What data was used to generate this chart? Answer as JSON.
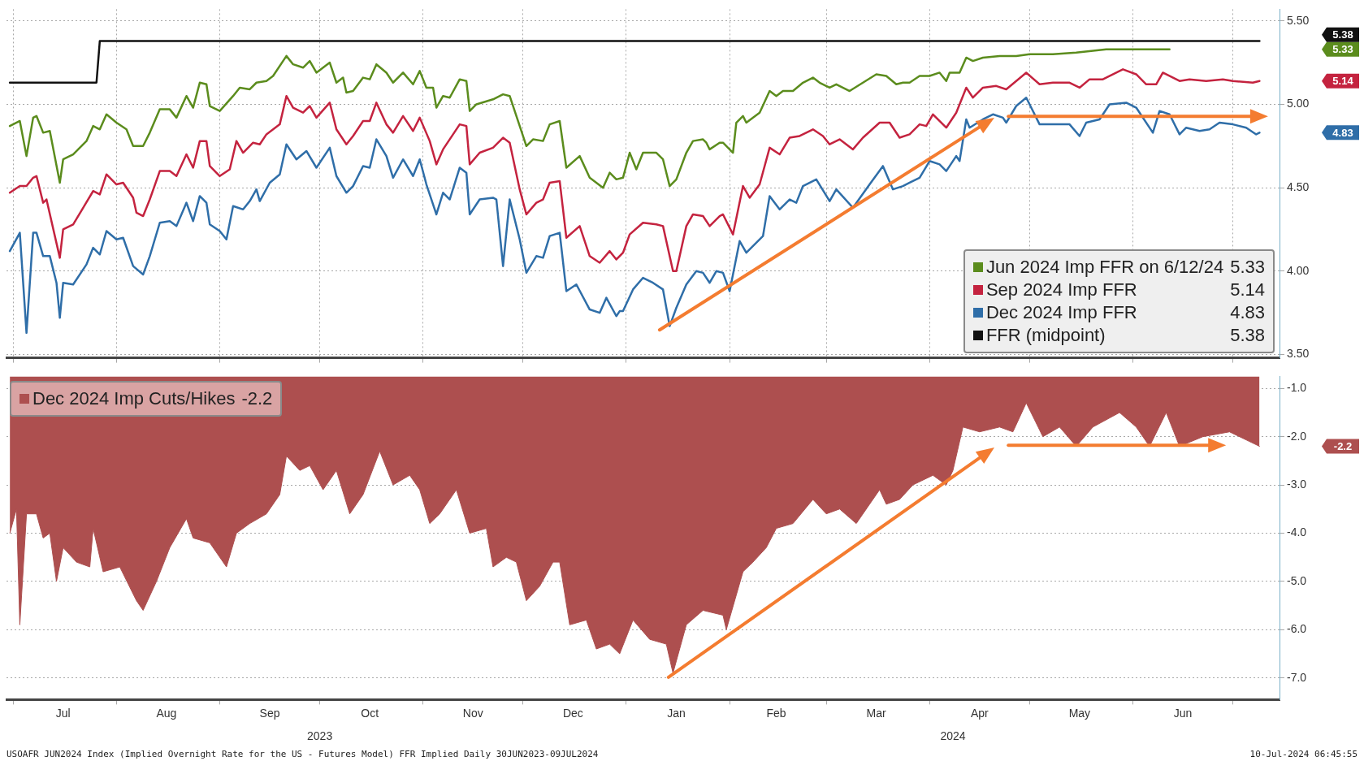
{
  "chart_data": [
    {
      "type": "line",
      "series": [
        {
          "name": "Jun 2024 Imp FFR on 6/12/24",
          "color": "#5b8c1d",
          "x": [
            "2023-06-30",
            "2023-07-03",
            "2023-07-05",
            "2023-07-07",
            "2023-07-08",
            "2023-07-10",
            "2023-07-12",
            "2023-07-15",
            "2023-07-16",
            "2023-07-19",
            "2023-07-23",
            "2023-07-25",
            "2023-07-27",
            "2023-07-29",
            "2023-08-01",
            "2023-08-04",
            "2023-08-06",
            "2023-08-09",
            "2023-08-11",
            "2023-08-14",
            "2023-08-17",
            "2023-08-19",
            "2023-08-22",
            "2023-08-24",
            "2023-08-26",
            "2023-08-28",
            "2023-08-29",
            "2023-09-01",
            "2023-09-05",
            "2023-09-07",
            "2023-09-10",
            "2023-09-12",
            "2023-09-15",
            "2023-09-17",
            "2023-09-21",
            "2023-09-23",
            "2023-09-26",
            "2023-09-28",
            "2023-09-30",
            "2023-10-04",
            "2023-10-06",
            "2023-10-08",
            "2023-10-09",
            "2023-10-11",
            "2023-10-14",
            "2023-10-16",
            "2023-10-18",
            "2023-10-21",
            "2023-10-23",
            "2023-10-26",
            "2023-10-29",
            "2023-10-31",
            "2023-11-02",
            "2023-11-04",
            "2023-11-05",
            "2023-11-07",
            "2023-11-09",
            "2023-11-12",
            "2023-11-14",
            "2023-11-15",
            "2023-11-17",
            "2023-11-22",
            "2023-11-25",
            "2023-11-27",
            "2023-11-30",
            "2023-12-02",
            "2023-12-04",
            "2023-12-07",
            "2023-12-09",
            "2023-12-12",
            "2023-12-14",
            "2023-12-18",
            "2023-12-21",
            "2023-12-25",
            "2023-12-27",
            "2023-12-29",
            "2023-12-31",
            "2024-01-02",
            "2024-01-04",
            "2024-01-06",
            "2024-01-10",
            "2024-01-12",
            "2024-01-14",
            "2024-01-16",
            "2024-01-19",
            "2024-01-21",
            "2024-01-24",
            "2024-01-25",
            "2024-01-26",
            "2024-01-29",
            "2024-01-30",
            "2024-02-02",
            "2024-02-03",
            "2024-02-05",
            "2024-02-06",
            "2024-02-10",
            "2024-02-13",
            "2024-02-15",
            "2024-02-17",
            "2024-02-20",
            "2024-02-23",
            "2024-02-26",
            "2024-02-28",
            "2024-03-02",
            "2024-03-04",
            "2024-03-08",
            "2024-03-12",
            "2024-03-16",
            "2024-03-19",
            "2024-03-22",
            "2024-03-24",
            "2024-03-26",
            "2024-03-29",
            "2024-04-01",
            "2024-04-04",
            "2024-04-06",
            "2024-04-07",
            "2024-04-10",
            "2024-04-12",
            "2024-04-14",
            "2024-04-17",
            "2024-04-22",
            "2024-04-27",
            "2024-05-01",
            "2024-05-08",
            "2024-05-15",
            "2024-05-24",
            "2024-06-02",
            "2024-06-12"
          ],
          "values": [
            4.87,
            4.9,
            4.69,
            4.92,
            4.93,
            4.83,
            4.84,
            4.53,
            4.67,
            4.7,
            4.78,
            4.87,
            4.85,
            4.94,
            4.89,
            4.85,
            4.75,
            4.75,
            4.83,
            4.97,
            4.97,
            4.92,
            5.05,
            4.98,
            5.13,
            5.12,
            4.99,
            4.96,
            5.05,
            5.1,
            5.09,
            5.13,
            5.14,
            5.17,
            5.29,
            5.24,
            5.22,
            5.26,
            5.19,
            5.25,
            5.13,
            5.16,
            5.07,
            5.08,
            5.16,
            5.15,
            5.24,
            5.19,
            5.13,
            5.19,
            5.12,
            5.2,
            5.1,
            5.1,
            4.98,
            5.05,
            5.04,
            5.15,
            5.14,
            4.96,
            5.0,
            5.03,
            5.06,
            5.05,
            4.87,
            4.75,
            4.79,
            4.78,
            4.88,
            4.9,
            4.62,
            4.69,
            4.56,
            4.5,
            4.59,
            4.55,
            4.56,
            4.71,
            4.61,
            4.71,
            4.71,
            4.67,
            4.51,
            4.55,
            4.71,
            4.78,
            4.79,
            4.77,
            4.73,
            4.77,
            4.77,
            4.71,
            4.89,
            4.93,
            4.89,
            4.95,
            5.08,
            5.05,
            5.08,
            5.08,
            5.13,
            5.16,
            5.13,
            5.1,
            5.12,
            5.08,
            5.13,
            5.18,
            5.17,
            5.12,
            5.13,
            5.13,
            5.17,
            5.17,
            5.19,
            5.14,
            5.19,
            5.19,
            5.28,
            5.26,
            5.28,
            5.29,
            5.29,
            5.3,
            5.3,
            5.31,
            5.33,
            5.33,
            5.33
          ]
        },
        {
          "name": "Sep 2024 Imp FFR",
          "color": "#c4233f",
          "x": [
            "2023-06-30",
            "2023-07-03",
            "2023-07-05",
            "2023-07-07",
            "2023-07-08",
            "2023-07-10",
            "2023-07-11",
            "2023-07-15",
            "2023-07-16",
            "2023-07-19",
            "2023-07-22",
            "2023-07-25",
            "2023-07-27",
            "2023-07-29",
            "2023-08-01",
            "2023-08-03",
            "2023-08-06",
            "2023-08-07",
            "2023-08-09",
            "2023-08-11",
            "2023-08-14",
            "2023-08-17",
            "2023-08-19",
            "2023-08-22",
            "2023-08-24",
            "2023-08-26",
            "2023-08-28",
            "2023-08-29",
            "2023-09-01",
            "2023-09-04",
            "2023-09-06",
            "2023-09-08",
            "2023-09-11",
            "2023-09-13",
            "2023-09-15",
            "2023-09-19",
            "2023-09-21",
            "2023-09-23",
            "2023-09-26",
            "2023-09-28",
            "2023-09-30",
            "2023-10-04",
            "2023-10-06",
            "2023-10-09",
            "2023-10-11",
            "2023-10-14",
            "2023-10-16",
            "2023-10-18",
            "2023-10-21",
            "2023-10-23",
            "2023-10-26",
            "2023-10-29",
            "2023-10-31",
            "2023-11-03",
            "2023-11-05",
            "2023-11-07",
            "2023-11-12",
            "2023-11-14",
            "2023-11-15",
            "2023-11-18",
            "2023-11-22",
            "2023-11-25",
            "2023-11-27",
            "2023-11-30",
            "2023-12-02",
            "2023-12-05",
            "2023-12-07",
            "2023-12-09",
            "2023-12-12",
            "2023-12-14",
            "2023-12-18",
            "2023-12-21",
            "2023-12-24",
            "2023-12-27",
            "2023-12-29",
            "2023-12-31",
            "2024-01-02",
            "2024-01-06",
            "2024-01-10",
            "2024-01-12",
            "2024-01-15",
            "2024-01-16",
            "2024-01-19",
            "2024-01-21",
            "2024-01-24",
            "2024-01-26",
            "2024-01-29",
            "2024-01-30",
            "2024-02-02",
            "2024-02-05",
            "2024-02-07",
            "2024-02-10",
            "2024-02-13",
            "2024-02-16",
            "2024-02-19",
            "2024-02-22",
            "2024-02-26",
            "2024-02-29",
            "2024-03-02",
            "2024-03-05",
            "2024-03-09",
            "2024-03-12",
            "2024-03-17",
            "2024-03-20",
            "2024-03-23",
            "2024-03-26",
            "2024-03-29",
            "2024-03-31",
            "2024-04-02",
            "2024-04-06",
            "2024-04-09",
            "2024-04-12",
            "2024-04-14",
            "2024-04-17",
            "2024-04-21",
            "2024-04-24",
            "2024-04-27",
            "2024-04-30",
            "2024-05-04",
            "2024-05-08",
            "2024-05-13",
            "2024-05-16",
            "2024-05-19",
            "2024-05-23",
            "2024-05-29",
            "2024-06-02",
            "2024-06-05",
            "2024-06-08",
            "2024-06-10",
            "2024-06-15",
            "2024-06-18",
            "2024-06-23",
            "2024-06-28",
            "2024-07-01",
            "2024-07-07",
            "2024-07-09"
          ],
          "values": [
            4.47,
            4.51,
            4.51,
            4.56,
            4.57,
            4.41,
            4.43,
            4.08,
            4.25,
            4.28,
            4.38,
            4.48,
            4.46,
            4.58,
            4.52,
            4.53,
            4.44,
            4.35,
            4.33,
            4.43,
            4.6,
            4.6,
            4.57,
            4.7,
            4.62,
            4.78,
            4.78,
            4.63,
            4.57,
            4.61,
            4.78,
            4.71,
            4.77,
            4.76,
            4.82,
            4.88,
            5.05,
            4.98,
            4.95,
            4.99,
            4.92,
            5.01,
            4.85,
            4.76,
            4.81,
            4.9,
            4.9,
            5.01,
            4.88,
            4.83,
            4.93,
            4.84,
            4.92,
            4.78,
            4.64,
            4.73,
            4.88,
            4.87,
            4.64,
            4.71,
            4.74,
            4.8,
            4.77,
            4.49,
            4.34,
            4.41,
            4.43,
            4.53,
            4.54,
            4.2,
            4.27,
            4.09,
            4.05,
            4.12,
            4.07,
            4.11,
            4.22,
            4.29,
            4.28,
            4.27,
            4.0,
            4.0,
            4.27,
            4.34,
            4.33,
            4.27,
            4.33,
            4.34,
            4.22,
            4.51,
            4.44,
            4.52,
            4.74,
            4.7,
            4.8,
            4.81,
            4.85,
            4.81,
            4.76,
            4.79,
            4.73,
            4.8,
            4.89,
            4.89,
            4.8,
            4.82,
            4.88,
            4.87,
            4.94,
            4.86,
            4.95,
            5.1,
            5.04,
            5.1,
            5.11,
            5.09,
            5.14,
            5.19,
            5.12,
            5.13,
            5.13,
            5.1,
            5.15,
            5.15,
            5.21,
            5.18,
            5.12,
            5.12,
            5.19,
            5.14,
            5.15,
            5.14,
            5.15,
            5.14,
            5.13,
            5.14
          ]
        },
        {
          "name": "Dec 2024 Imp FFR",
          "color": "#2f6ea8",
          "x": [
            "2023-06-30",
            "2023-07-03",
            "2023-07-05",
            "2023-07-07",
            "2023-07-08",
            "2023-07-10",
            "2023-07-12",
            "2023-07-14",
            "2023-07-15",
            "2023-07-16",
            "2023-07-19",
            "2023-07-23",
            "2023-07-25",
            "2023-07-27",
            "2023-07-29",
            "2023-08-01",
            "2023-08-03",
            "2023-08-06",
            "2023-08-09",
            "2023-08-11",
            "2023-08-14",
            "2023-08-17",
            "2023-08-19",
            "2023-08-22",
            "2023-08-24",
            "2023-08-26",
            "2023-08-28",
            "2023-08-29",
            "2023-09-01",
            "2023-09-03",
            "2023-09-05",
            "2023-09-08",
            "2023-09-10",
            "2023-09-12",
            "2023-09-13",
            "2023-09-16",
            "2023-09-19",
            "2023-09-21",
            "2023-09-24",
            "2023-09-27",
            "2023-09-30",
            "2023-10-04",
            "2023-10-06",
            "2023-10-09",
            "2023-10-11",
            "2023-10-14",
            "2023-10-16",
            "2023-10-18",
            "2023-10-21",
            "2023-10-23",
            "2023-10-26",
            "2023-10-29",
            "2023-10-31",
            "2023-11-02",
            "2023-11-05",
            "2023-11-07",
            "2023-11-09",
            "2023-11-12",
            "2023-11-14",
            "2023-11-15",
            "2023-11-18",
            "2023-11-22",
            "2023-11-23",
            "2023-11-25",
            "2023-11-27",
            "2023-11-30",
            "2023-12-02",
            "2023-12-05",
            "2023-12-07",
            "2023-12-09",
            "2023-12-12",
            "2023-12-14",
            "2023-12-17",
            "2023-12-21",
            "2023-12-24",
            "2023-12-26",
            "2023-12-29",
            "2023-12-30",
            "2023-12-31",
            "2024-01-03",
            "2024-01-06",
            "2024-01-09",
            "2024-01-12",
            "2024-01-14",
            "2024-01-16",
            "2024-01-19",
            "2024-01-22",
            "2024-01-24",
            "2024-01-26",
            "2024-01-28",
            "2024-01-30",
            "2024-02-01",
            "2024-02-04",
            "2024-02-06",
            "2024-02-11",
            "2024-02-13",
            "2024-02-16",
            "2024-02-19",
            "2024-02-21",
            "2024-02-23",
            "2024-02-27",
            "2024-03-02",
            "2024-03-04",
            "2024-03-09",
            "2024-03-14",
            "2024-03-18",
            "2024-03-21",
            "2024-03-24",
            "2024-03-26",
            "2024-03-29",
            "2024-04-01",
            "2024-04-04",
            "2024-04-06",
            "2024-04-09",
            "2024-04-10",
            "2024-04-12",
            "2024-04-13",
            "2024-04-17",
            "2024-04-20",
            "2024-04-23",
            "2024-04-24",
            "2024-04-27",
            "2024-04-30",
            "2024-05-04",
            "2024-05-08",
            "2024-05-13",
            "2024-05-16",
            "2024-05-18",
            "2024-05-22",
            "2024-05-25",
            "2024-05-30",
            "2024-06-02",
            "2024-06-07",
            "2024-06-09",
            "2024-06-12",
            "2024-06-15",
            "2024-06-17",
            "2024-06-21",
            "2024-06-24",
            "2024-06-27",
            "2024-07-01",
            "2024-07-05",
            "2024-07-08",
            "2024-07-09"
          ],
          "values": [
            4.12,
            4.23,
            3.63,
            4.23,
            4.23,
            4.09,
            4.09,
            3.93,
            3.72,
            3.93,
            3.92,
            4.04,
            4.14,
            4.1,
            4.24,
            4.19,
            4.2,
            4.03,
            3.98,
            4.09,
            4.29,
            4.3,
            4.27,
            4.41,
            4.3,
            4.45,
            4.41,
            4.28,
            4.24,
            4.19,
            4.39,
            4.37,
            4.42,
            4.49,
            4.42,
            4.53,
            4.58,
            4.76,
            4.67,
            4.72,
            4.62,
            4.74,
            4.57,
            4.47,
            4.51,
            4.63,
            4.62,
            4.79,
            4.69,
            4.56,
            4.67,
            4.57,
            4.67,
            4.52,
            4.34,
            4.47,
            4.43,
            4.62,
            4.59,
            4.34,
            4.43,
            4.44,
            4.43,
            4.03,
            4.43,
            4.19,
            3.99,
            4.09,
            4.08,
            4.21,
            4.23,
            3.88,
            3.92,
            3.77,
            3.75,
            3.84,
            3.73,
            3.76,
            3.76,
            3.89,
            3.96,
            3.93,
            3.89,
            3.67,
            3.78,
            3.92,
            4.0,
            3.99,
            3.93,
            4.0,
            3.99,
            3.88,
            4.18,
            4.11,
            4.21,
            4.45,
            4.37,
            4.43,
            4.41,
            4.51,
            4.55,
            4.42,
            4.49,
            4.38,
            4.52,
            4.63,
            4.49,
            4.51,
            4.53,
            4.56,
            4.66,
            4.64,
            4.6,
            4.69,
            4.66,
            4.91,
            4.86,
            4.91,
            4.94,
            4.92,
            4.89,
            4.99,
            5.04,
            4.88,
            4.88,
            4.88,
            4.81,
            4.89,
            4.91,
            5.0,
            5.01,
            4.98,
            4.83,
            4.96,
            4.94,
            4.82,
            4.86,
            4.84,
            4.85,
            4.89,
            4.88,
            4.86,
            4.82,
            4.83
          ]
        },
        {
          "name": "FFR (midpoint)",
          "color": "#111111",
          "x": [
            "2023-06-30",
            "2023-07-26",
            "2023-07-27",
            "2024-07-09"
          ],
          "values": [
            5.13,
            5.13,
            5.38,
            5.38
          ]
        }
      ],
      "xlim": [
        "2023-06-29",
        "2024-07-15"
      ],
      "xticks": [
        {
          "value": "2023-07-01",
          "label": null
        },
        {
          "value": "2023-08-01",
          "label": null
        },
        {
          "value": "2023-09-01",
          "label": null
        },
        {
          "value": "2023-10-01",
          "label": null
        },
        {
          "value": "2023-11-01",
          "label": null
        },
        {
          "value": "2023-12-01",
          "label": null
        },
        {
          "value": "2024-01-01",
          "label": null
        },
        {
          "value": "2024-02-01",
          "label": null
        },
        {
          "value": "2024-03-01",
          "label": null
        },
        {
          "value": "2024-04-01",
          "label": null
        },
        {
          "value": "2024-05-01",
          "label": null
        },
        {
          "value": "2024-06-01",
          "label": null
        },
        {
          "value": "2024-07-01",
          "label": null
        }
      ],
      "ylim": [
        3.48,
        5.57
      ],
      "yticks": [
        {
          "value": 3.5,
          "label": "3.50"
        },
        {
          "value": 4,
          "label": "4.00"
        },
        {
          "value": 4.5,
          "label": "4.50"
        },
        {
          "value": 5,
          "label": "5.00"
        },
        {
          "value": 5.5,
          "label": "5.50"
        }
      ],
      "grid": true,
      "legend": "bottom right",
      "tick_labels": "y",
      "annotations": [
        "5.33",
        "5.14",
        "4.83",
        "5.38"
      ]
    },
    {
      "type": "area",
      "series": [
        {
          "name": "Dec 2024 Imp Cuts/Hikes",
          "color": "#ad4f4f",
          "x": [
            "2023-06-30",
            "2023-07-02",
            "2023-07-03",
            "2023-07-05",
            "2023-07-08",
            "2023-07-10",
            "2023-07-12",
            "2023-07-14",
            "2023-07-16",
            "2023-07-20",
            "2023-07-24",
            "2023-07-25",
            "2023-07-28",
            "2023-08-02",
            "2023-08-07",
            "2023-08-09",
            "2023-08-13",
            "2023-08-17",
            "2023-08-22",
            "2023-08-24",
            "2023-08-29",
            "2023-09-03",
            "2023-09-06",
            "2023-09-10",
            "2023-09-15",
            "2023-09-19",
            "2023-09-21",
            "2023-09-25",
            "2023-09-28",
            "2023-10-02",
            "2023-10-06",
            "2023-10-10",
            "2023-10-14",
            "2023-10-19",
            "2023-10-23",
            "2023-10-28",
            "2023-10-31",
            "2023-11-03",
            "2023-11-06",
            "2023-11-11",
            "2023-11-15",
            "2023-11-20",
            "2023-11-22",
            "2023-11-26",
            "2023-11-29",
            "2023-12-02",
            "2023-12-06",
            "2023-12-10",
            "2023-12-12",
            "2023-12-15",
            "2023-12-20",
            "2023-12-23",
            "2023-12-27",
            "2023-12-30",
            "2024-01-03",
            "2024-01-08",
            "2024-01-13",
            "2024-01-15",
            "2024-01-19",
            "2024-01-24",
            "2024-01-30",
            "2024-01-31",
            "2024-02-05",
            "2024-02-08",
            "2024-02-12",
            "2024-02-15",
            "2024-02-20",
            "2024-02-26",
            "2024-03-01",
            "2024-03-05",
            "2024-03-10",
            "2024-03-17",
            "2024-03-19",
            "2024-03-23",
            "2024-03-27",
            "2024-04-02",
            "2024-04-06",
            "2024-04-08",
            "2024-04-11",
            "2024-04-16",
            "2024-04-22",
            "2024-04-26",
            "2024-04-30",
            "2024-05-05",
            "2024-05-10",
            "2024-05-15",
            "2024-05-20",
            "2024-05-28",
            "2024-06-02",
            "2024-06-06",
            "2024-06-11",
            "2024-06-15",
            "2024-06-22",
            "2024-06-30",
            "2024-07-06",
            "2024-07-09"
          ],
          "values": [
            -4.0,
            -3.5,
            -5.9,
            -3.6,
            -3.6,
            -4.1,
            -4.0,
            -5.0,
            -4.3,
            -4.6,
            -4.7,
            -3.9,
            -4.8,
            -4.7,
            -5.4,
            -5.6,
            -5.0,
            -4.3,
            -3.7,
            -4.1,
            -4.2,
            -4.7,
            -4.0,
            -3.8,
            -3.6,
            -3.2,
            -2.4,
            -2.7,
            -2.6,
            -3.1,
            -2.7,
            -3.6,
            -3.2,
            -2.3,
            -3.0,
            -2.8,
            -3.1,
            -3.8,
            -3.6,
            -3.1,
            -4.0,
            -3.9,
            -4.7,
            -4.5,
            -4.6,
            -5.4,
            -5.1,
            -4.6,
            -4.6,
            -5.9,
            -5.8,
            -6.4,
            -6.3,
            -6.5,
            -5.8,
            -6.2,
            -6.3,
            -6.9,
            -5.9,
            -5.6,
            -5.7,
            -6.0,
            -4.8,
            -4.6,
            -4.3,
            -3.9,
            -3.8,
            -3.3,
            -3.6,
            -3.5,
            -3.8,
            -3.1,
            -3.4,
            -3.3,
            -3.0,
            -2.8,
            -3.0,
            -2.7,
            -1.8,
            -1.9,
            -1.8,
            -1.9,
            -1.3,
            -2.0,
            -1.8,
            -2.2,
            -1.8,
            -1.5,
            -1.8,
            -2.2,
            -1.5,
            -2.2,
            -2.0,
            -1.9,
            -2.1,
            -2.2
          ]
        }
      ],
      "xlim": [
        "2023-06-29",
        "2024-07-15"
      ],
      "xticks": [
        {
          "value": "2023-07-01",
          "label": null
        },
        {
          "value": "2023-07-16",
          "label": "Jul"
        },
        {
          "value": "2023-08-01",
          "label": null
        },
        {
          "value": "2023-08-16",
          "label": "Aug"
        },
        {
          "value": "2023-09-01",
          "label": null
        },
        {
          "value": "2023-09-16",
          "label": "Sep"
        },
        {
          "value": "2023-10-01",
          "label": null
        },
        {
          "value": "2023-10-16",
          "label": "Oct"
        },
        {
          "value": "2023-11-01",
          "label": null
        },
        {
          "value": "2023-11-16",
          "label": "Nov"
        },
        {
          "value": "2023-12-01",
          "label": null
        },
        {
          "value": "2023-12-16",
          "label": "Dec"
        },
        {
          "value": "2024-01-01",
          "label": null
        },
        {
          "value": "2024-01-16",
          "label": "Jan"
        },
        {
          "value": "2024-02-01",
          "label": null
        },
        {
          "value": "2024-02-15",
          "label": "Feb"
        },
        {
          "value": "2024-03-01",
          "label": null
        },
        {
          "value": "2024-03-16",
          "label": "Mar"
        },
        {
          "value": "2024-04-01",
          "label": null
        },
        {
          "value": "2024-04-16",
          "label": "Apr"
        },
        {
          "value": "2024-05-01",
          "label": null
        },
        {
          "value": "2024-05-16",
          "label": "May"
        },
        {
          "value": "2024-06-01",
          "label": null
        },
        {
          "value": "2024-06-16",
          "label": "Jun"
        },
        {
          "value": "2024-07-01",
          "label": null
        }
      ],
      "x2lim": [
        "2023-06-29",
        "2024-07-15"
      ],
      "x2ticks": [
        {
          "value": "2023-10-01",
          "label": "2023"
        },
        {
          "value": "2024-04-08",
          "label": "2024"
        }
      ],
      "ylim": [
        -7.45,
        -0.75
      ],
      "yticks": [
        {
          "value": -7,
          "label": "-7.0"
        },
        {
          "value": -6,
          "label": "-6.0"
        },
        {
          "value": -5,
          "label": "-5.0"
        },
        {
          "value": -4,
          "label": "-4.0"
        },
        {
          "value": -3,
          "label": "-3.0"
        },
        {
          "value": -2,
          "label": "-2.0"
        },
        {
          "value": -1,
          "label": "-1.0"
        }
      ],
      "grid": "y",
      "legend": "top left",
      "annotations": [
        "-2.2",
        "USOAFR JUN2024 Index (Implied Overnight Rate for the US - Futures Model) FFR Implied Daily 30JUN2023-09JUL2024",
        "10-Jul-2024 06:45:55"
      ]
    }
  ]
}
